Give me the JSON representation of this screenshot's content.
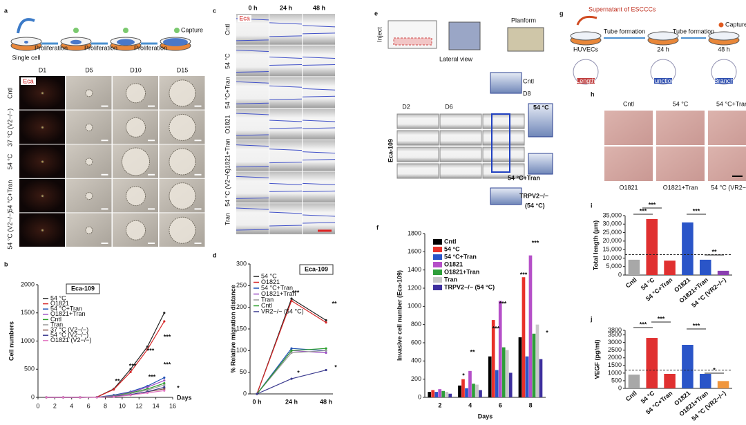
{
  "panels": {
    "a": {
      "letter": "a",
      "single_cell": "Single cell",
      "proliferation": [
        "Proliferation",
        "Proliferation",
        "Proliferation"
      ],
      "capture": "Capture",
      "tag": "Eca",
      "columns": [
        "D1",
        "D5",
        "D10",
        "D15"
      ],
      "rows": [
        "Cntl",
        "37 °C (V2−/−)",
        "54 °C",
        "54 °C+Tran",
        "54 °C (V2−/−)"
      ]
    },
    "c": {
      "letter": "c",
      "tag": "Eca",
      "columns": [
        "0 h",
        "24 h",
        "48 h"
      ],
      "rows": [
        "Cntl",
        "54 °C",
        "54 °C+Tran",
        "O1821",
        "O1821+Tran",
        "54 °C (V2−/−)",
        "Tran"
      ]
    },
    "e": {
      "letter": "e",
      "inject": "Inject",
      "lateral_view": "Lateral view",
      "planform": "Planform",
      "cntl": "Cntl",
      "d8": "D8",
      "d2": "D2",
      "d6": "D6",
      "cell_line": "Eca-109",
      "hot": "54 °C",
      "hot_tran": "54 °C+Tran",
      "knockout": "TRPV2−/−",
      "knockout_temp": "(54 °C)"
    },
    "g": {
      "letter": "g",
      "supernatant": "Supernatant of ESCCCs",
      "tube_formation": [
        "Tube formation",
        "Tube formation"
      ],
      "capture": "Capture",
      "stages": [
        "HUVECs",
        "24 h",
        "48 h"
      ],
      "measures": [
        "Length",
        "Junction",
        "Branch"
      ]
    },
    "h": {
      "letter": "h",
      "top": [
        "Cntl",
        "54 °C",
        "54 °C+Tran"
      ],
      "bottom": [
        "O1821",
        "O1821+Tran",
        "54 °C (VR2−/−)"
      ]
    }
  },
  "chart_data": [
    {
      "panel": "b",
      "type": "line",
      "title": "Eca-109",
      "y_label": "Cell numbers",
      "x_label": "Days",
      "x": [
        1,
        3,
        5,
        7,
        9,
        11,
        13,
        15
      ],
      "xlim": [
        0,
        16
      ],
      "xticks": [
        0,
        2,
        4,
        6,
        8,
        10,
        12,
        14,
        16
      ],
      "ylim": [
        0,
        2000
      ],
      "yticks": [
        0,
        500,
        1000,
        1500,
        2000
      ],
      "series": [
        {
          "name": "54 °C",
          "color": "#222222",
          "values": [
            0,
            0,
            0,
            5,
            150,
            500,
            900,
            1500
          ]
        },
        {
          "name": "O1821",
          "color": "#d62728",
          "values": [
            0,
            0,
            0,
            5,
            140,
            450,
            850,
            1350
          ]
        },
        {
          "name": "54 °C+Tran",
          "color": "#1f4fb4",
          "values": [
            0,
            0,
            0,
            2,
            40,
            100,
            200,
            350
          ]
        },
        {
          "name": "O1821+Tran",
          "color": "#9c4fc4",
          "values": [
            0,
            0,
            0,
            2,
            30,
            90,
            180,
            300
          ]
        },
        {
          "name": "Cntl",
          "color": "#2ca02c",
          "values": [
            0,
            0,
            0,
            2,
            25,
            80,
            150,
            250
          ]
        },
        {
          "name": "Tran",
          "color": "#999999",
          "values": [
            0,
            0,
            0,
            2,
            20,
            70,
            130,
            220
          ]
        },
        {
          "name": "37 °C (V2−/−)",
          "color": "#8c564b",
          "values": [
            0,
            0,
            0,
            1,
            15,
            50,
            100,
            150
          ]
        },
        {
          "name": "54 °C (V2−/−)",
          "color": "#3b3b8f",
          "values": [
            0,
            0,
            0,
            1,
            15,
            50,
            100,
            180
          ]
        },
        {
          "name": "O1821 (V2−/−)",
          "color": "#e377c2",
          "values": [
            0,
            0,
            0,
            1,
            10,
            40,
            80,
            120
          ]
        }
      ],
      "annotations": [
        "**",
        "***",
        "***",
        "***",
        "***",
        "***",
        "*"
      ]
    },
    {
      "panel": "d",
      "type": "line",
      "title": "Eca-109",
      "y_label": "% Relative migration distance",
      "categories": [
        "0 h",
        "24 h",
        "48 h"
      ],
      "ylim": [
        0,
        300
      ],
      "yticks": [
        0,
        50,
        100,
        150,
        200,
        250,
        300
      ],
      "series": [
        {
          "name": "54 °C",
          "color": "#222222",
          "values": [
            0,
            220,
            170
          ]
        },
        {
          "name": "O1821",
          "color": "#d62728",
          "values": [
            0,
            215,
            165
          ]
        },
        {
          "name": "54 °C+Tran",
          "color": "#1f4fb4",
          "values": [
            0,
            105,
            100
          ]
        },
        {
          "name": "O1821+Tran",
          "color": "#9c4fc4",
          "values": [
            0,
            100,
            95
          ]
        },
        {
          "name": "Tran",
          "color": "#999999",
          "values": [
            0,
            95,
            100
          ]
        },
        {
          "name": "Cntl",
          "color": "#2ca02c",
          "values": [
            0,
            100,
            105
          ]
        },
        {
          "name": "VR2−/− (54 °C)",
          "color": "#3b3b8f",
          "values": [
            0,
            35,
            55
          ]
        }
      ],
      "annotations": [
        "***",
        "**",
        "*",
        "*"
      ]
    },
    {
      "panel": "f",
      "type": "grouped_bar",
      "y_label": "Invasive cell number (Eca-109)",
      "x_label": "Days",
      "categories": [
        "2",
        "4",
        "6",
        "8"
      ],
      "ylim": [
        0,
        1800
      ],
      "yticks": [
        0,
        200,
        400,
        600,
        800,
        1000,
        1200,
        1400,
        1600,
        1800
      ],
      "series": [
        {
          "name": "Cntl",
          "color": "#000000",
          "values": [
            60,
            130,
            450,
            660
          ]
        },
        {
          "name": "54 °C",
          "color": "#e8312a",
          "values": [
            80,
            200,
            850,
            1320
          ]
        },
        {
          "name": "54 °C+Tran",
          "color": "#2a55c8",
          "values": [
            60,
            100,
            300,
            450
          ]
        },
        {
          "name": "O1821",
          "color": "#b54fc8",
          "values": [
            90,
            290,
            1060,
            1560
          ]
        },
        {
          "name": "O1821+Tran",
          "color": "#2e9e3a",
          "values": [
            70,
            150,
            550,
            700
          ]
        },
        {
          "name": "Tran",
          "color": "#c8c8c8",
          "values": [
            60,
            140,
            520,
            800
          ]
        },
        {
          "name": "TRPV2−/− (54 °C)",
          "color": "#3d2f9e",
          "values": [
            40,
            80,
            270,
            420
          ]
        }
      ],
      "annotations": [
        "*",
        "**",
        "***",
        "***",
        "***",
        "***",
        "*"
      ]
    },
    {
      "panel": "i",
      "type": "bar",
      "y_label": "Total length (μm)",
      "categories": [
        "Cntl",
        "54 °C",
        "54 °C+Tran",
        "O1821",
        "O1821+Tran",
        "54 °C (VR2−/−)"
      ],
      "values": [
        9000,
        33000,
        8500,
        31000,
        9000,
        2500
      ],
      "colors": [
        "#a8a8a8",
        "#e03030",
        "#e03030",
        "#2a55c8",
        "#2a55c8",
        "#8a3fb0"
      ],
      "ylim": [
        0,
        35000
      ],
      "yticks": [
        0,
        {
          "value": 5000,
          "label": "5,000"
        },
        {
          "value": 10000,
          "label": "10,000"
        },
        {
          "value": 15000,
          "label": "15,000"
        },
        {
          "value": 20000,
          "label": "20,000"
        },
        {
          "value": 25000,
          "label": "25,000"
        },
        {
          "value": 30000,
          "label": "30,000"
        },
        {
          "value": 35000,
          "label": "35,000"
        }
      ],
      "reference_line": 12000,
      "annotations": [
        "***",
        "***",
        "***",
        "**"
      ]
    },
    {
      "panel": "j",
      "type": "bar",
      "y_label": "VEGF (pg/ml)",
      "categories": [
        "Cntl",
        "54 °C",
        "54 °C+Tran",
        "O1821",
        "O1821+Tran",
        "54 °C (VR2−/−)"
      ],
      "values": [
        900,
        3300,
        950,
        2850,
        950,
        480
      ],
      "colors": [
        "#a8a8a8",
        "#e03030",
        "#e03030",
        "#2a55c8",
        "#2a55c8",
        "#f0963c"
      ],
      "ylim": [
        0,
        3800
      ],
      "yticks": [
        0,
        500,
        1000,
        1500,
        2000,
        2500,
        3000,
        3500,
        3800
      ],
      "reference_line": 1200,
      "annotations": [
        "***",
        "***",
        "***",
        "*"
      ]
    }
  ]
}
